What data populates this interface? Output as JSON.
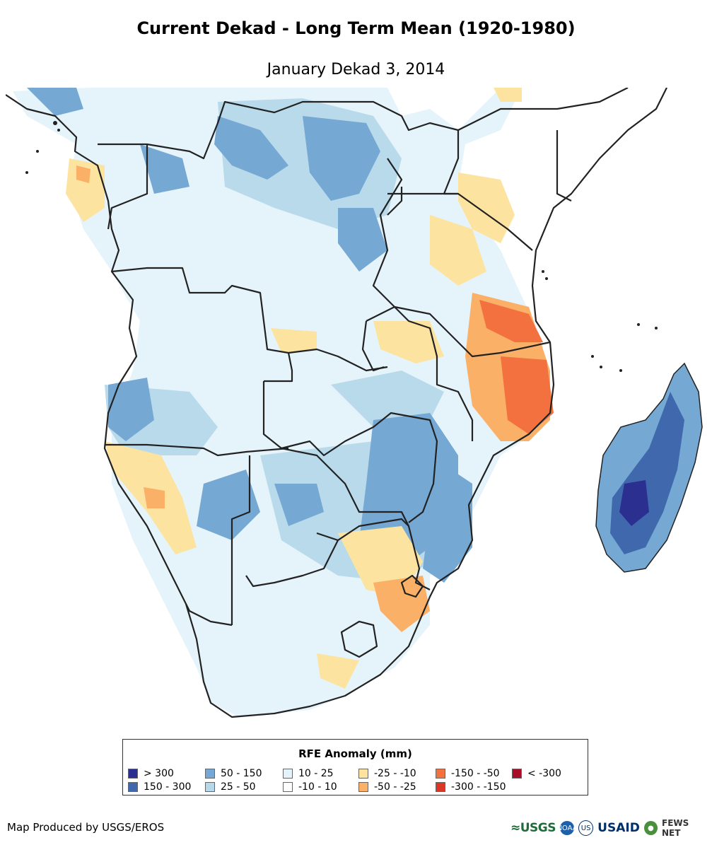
{
  "title": "Current Dekad - Long Term Mean (1920-1980)",
  "subtitle": "January Dekad 3, 2014",
  "legend": {
    "title": "RFE Anomaly (mm)",
    "items": [
      {
        "label": "> 300",
        "color": "#2b2f8f"
      },
      {
        "label": "150 - 300",
        "color": "#4069ad"
      },
      {
        "label": "50 - 150",
        "color": "#76a8d4"
      },
      {
        "label": "25 - 50",
        "color": "#b5d9ea"
      },
      {
        "label": "10 - 25",
        "color": "#e4f3fa"
      },
      {
        "label": "-10 - 10",
        "color": "#ffffff"
      },
      {
        "label": "-25 - -10",
        "color": "#fde3a0"
      },
      {
        "label": "-50 - -25",
        "color": "#fbb068"
      },
      {
        "label": "-150 - -50",
        "color": "#f3703f"
      },
      {
        "label": "-300 - -150",
        "color": "#dc3628"
      },
      {
        "label": "< -300",
        "color": "#a8102a"
      }
    ]
  },
  "credit": "Map Produced by USGS/EROS",
  "logos": {
    "usgs": "≈USGS",
    "noaa": "NOAA",
    "usaid_seal": "US",
    "usaid": "USAID",
    "fews": "FEWS NET"
  }
}
